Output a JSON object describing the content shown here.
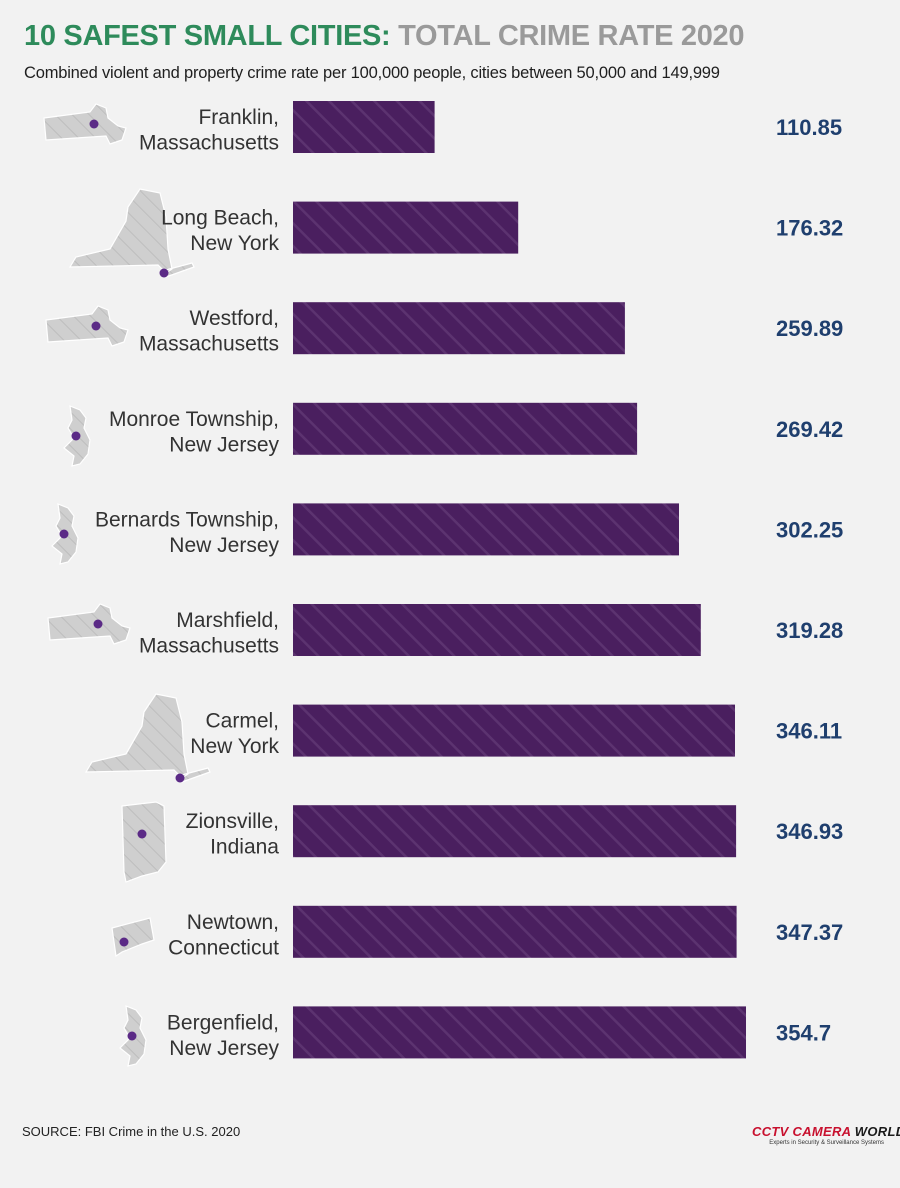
{
  "header": {
    "title_part1": "10 SAFEST SMALL CITIES:",
    "title_part2": "TOTAL CRIME RATE 2020",
    "subtitle": "Combined violent and property crime rate per 100,000 people, cities between 50,000 and 149,999"
  },
  "footer": {
    "source": "SOURCE: FBI Crime in the U.S. 2020",
    "logo_brand": "CCTV CAMERA",
    "logo_brand_2": "WORLD",
    "logo_tagline": "Experts in Security & Surveillance Systems"
  },
  "colors": {
    "bar": "#4a1f5f",
    "value_text": "#1f3f6e",
    "title_green": "#2e8b5b",
    "title_gray": "#9a9a9a",
    "state_shape": "#cfcfcf",
    "city_dot": "#5b2a86"
  },
  "chart_data": {
    "type": "bar",
    "orientation": "horizontal",
    "categories": [
      [
        "Franklin,",
        "Massachusetts"
      ],
      [
        "Long Beach,",
        "New York"
      ],
      [
        "Westford,",
        "Massachusetts"
      ],
      [
        "Monroe Township,",
        "New Jersey"
      ],
      [
        "Bernards Township,",
        "New Jersey"
      ],
      [
        "Marshfield,",
        "Massachusetts"
      ],
      [
        "Carmel,",
        "New York"
      ],
      [
        "Zionsville,",
        "Indiana"
      ],
      [
        "Newtown,",
        "Connecticut"
      ],
      [
        "Bergenfield,",
        "New Jersey"
      ]
    ],
    "values": [
      110.85,
      176.32,
      259.89,
      269.42,
      302.25,
      319.28,
      346.11,
      346.93,
      347.37,
      354.7
    ],
    "value_labels": [
      "110.85",
      "176.32",
      "259.89",
      "269.42",
      "302.25",
      "319.28",
      "346.11",
      "346.93",
      "347.37",
      "354.7"
    ],
    "state_icons": [
      "massachusetts-icon",
      "new-york-icon",
      "massachusetts-icon",
      "new-jersey-icon",
      "new-jersey-icon",
      "massachusetts-icon",
      "new-york-icon",
      "indiana-icon",
      "connecticut-icon",
      "new-jersey-icon"
    ],
    "xlim": [
      0,
      354.7
    ],
    "grid": false,
    "legend": "none"
  }
}
